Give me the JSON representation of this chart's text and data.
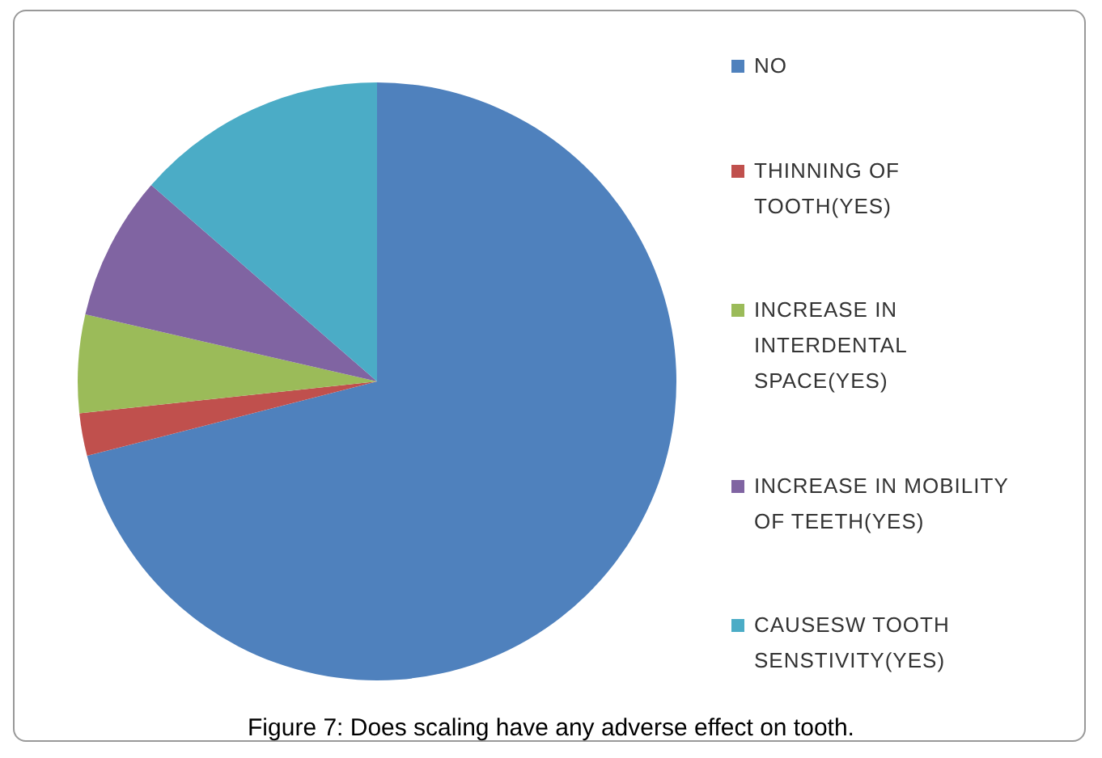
{
  "chart_data": {
    "type": "pie",
    "categories": [
      "NO",
      "THINNING OF TOOTH(YES)",
      "INCREASE IN INTERDENTAL SPACE(YES)",
      "INCREASE IN MOBILITY OF TEETH(YES)",
      "CAUSESW TOOTH SENSTIVITY(YES)"
    ],
    "values": [
      71,
      2.3,
      5.3,
      7.8,
      13.6
    ],
    "colors": [
      "#4f81bd",
      "#c0504d",
      "#9bbb59",
      "#8064a2",
      "#4bacc6"
    ],
    "legend": "right",
    "annotations": [
      "Figure 7: Does scaling have any adverse effect on tooth."
    ]
  }
}
